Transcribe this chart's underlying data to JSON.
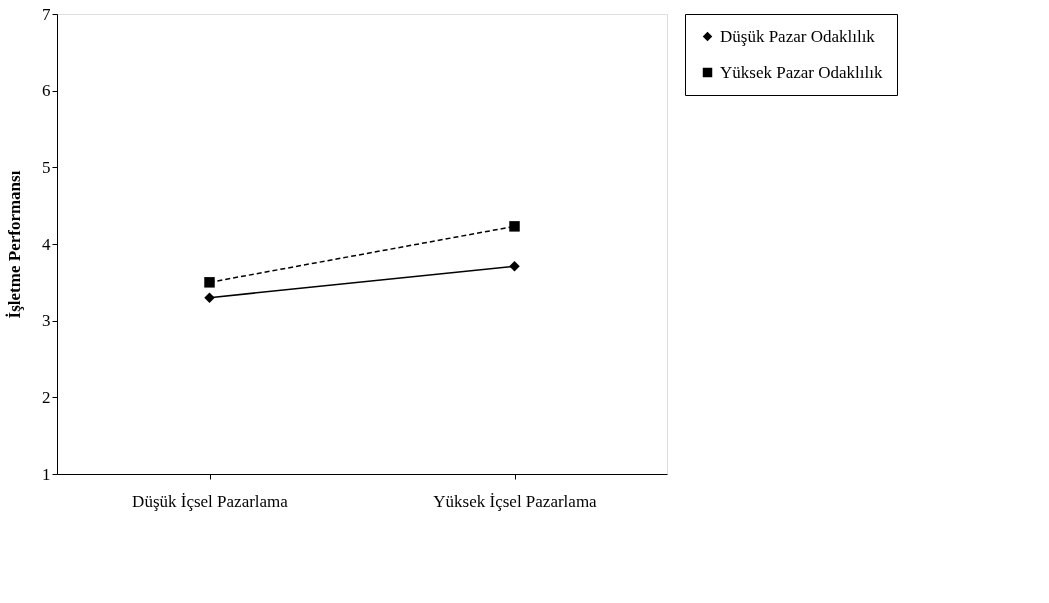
{
  "chart_data": {
    "type": "line",
    "ylabel": "İşletme Performansı",
    "categories": [
      "Düşük İçsel Pazarlama",
      "Yüksek İçsel Pazarlama"
    ],
    "series": [
      {
        "name": "Düşük Pazar Odaklılık",
        "color": "#000000",
        "values": [
          3.3,
          3.71
        ],
        "marker": "diamond",
        "line_style": "solid"
      },
      {
        "name": "Yüksek Pazar Odaklılık",
        "color": "#000000",
        "values": [
          3.5,
          4.23
        ],
        "marker": "square",
        "line_style": "dashed"
      }
    ],
    "ylim": [
      1,
      7
    ],
    "yticks": [
      1,
      2,
      3,
      4,
      5,
      6,
      7
    ],
    "grid": false,
    "legend": "right"
  }
}
